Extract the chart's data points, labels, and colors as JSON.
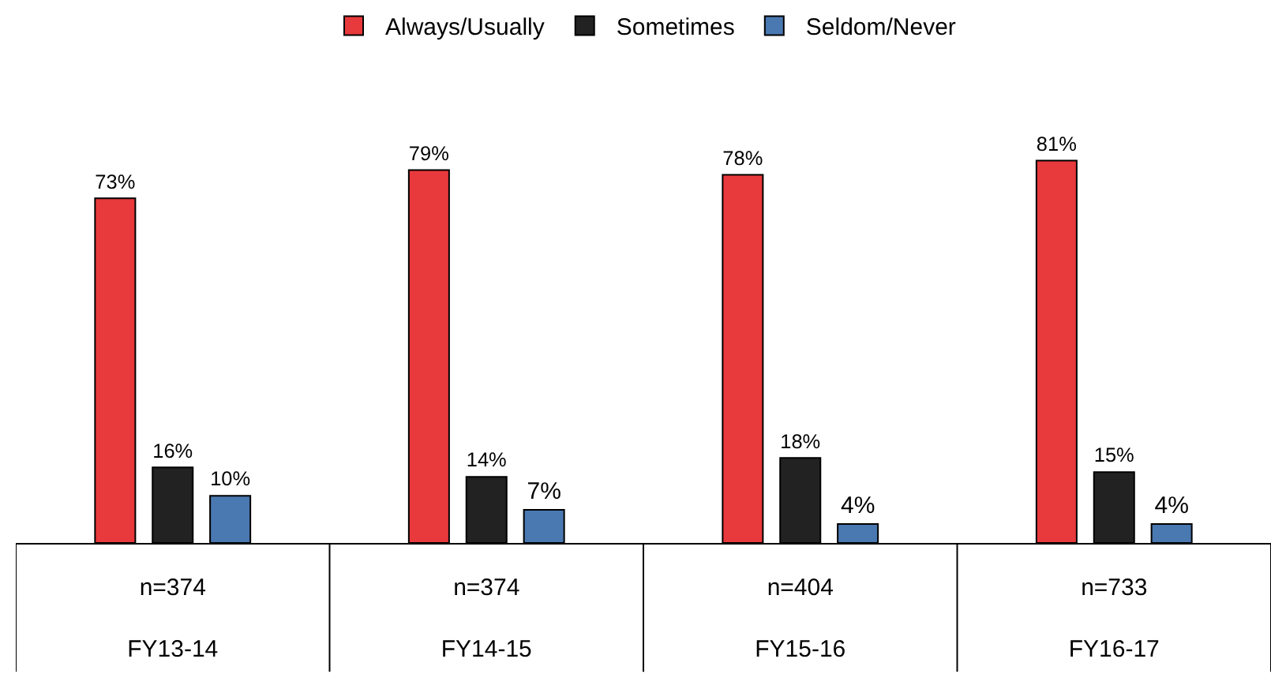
{
  "chart_data": {
    "type": "bar",
    "categories": [
      "n=374\nFY13-14",
      "n=374\nFY14-15",
      "n=404\nFY15-16",
      "n=733\nFY16-17"
    ],
    "series": [
      {
        "name": "Always/Usually",
        "color": "#e8393c",
        "values": [
          73,
          79,
          78,
          81
        ],
        "value_labels": [
          "73%",
          "79%",
          "78%",
          "81%"
        ]
      },
      {
        "name": "Sometimes",
        "color": "#222222",
        "values": [
          16,
          14,
          18,
          15
        ],
        "value_labels": [
          "16%",
          "14%",
          "18%",
          "15%"
        ]
      },
      {
        "name": "Seldom/Never",
        "color": "#4a78b0",
        "values": [
          10,
          7,
          4,
          4
        ],
        "value_labels": [
          "10%",
          "7%",
          "4%",
          "4%"
        ]
      }
    ],
    "legend": "top"
  }
}
